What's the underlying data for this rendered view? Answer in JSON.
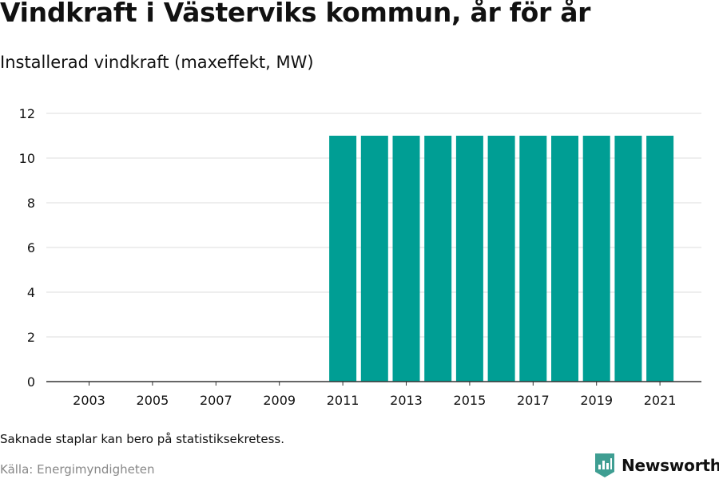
{
  "title": "Vindkraft i Västerviks kommun, år för år",
  "subtitle": "Installerad vindkraft (maxeffekt, MW)",
  "note": "Saknade staplar kan bero på statistiksekretess.",
  "source": "Källa: Energimyndigheten",
  "logo": {
    "text": "Newsworthy",
    "icon": "bar-chart-badge-icon",
    "color": "#3f9e92"
  },
  "colors": {
    "bar": "#009e94",
    "grid": "#dddddd",
    "axis": "#333333",
    "text": "#111111",
    "muted": "#888888"
  },
  "chart_data": {
    "type": "bar",
    "title": "Vindkraft i Västerviks kommun, år för år",
    "subtitle": "Installerad vindkraft (maxeffekt, MW)",
    "xlabel": "",
    "ylabel": "",
    "categories": [
      "2003",
      "2004",
      "2005",
      "2006",
      "2007",
      "2008",
      "2009",
      "2010",
      "2011",
      "2012",
      "2013",
      "2014",
      "2015",
      "2016",
      "2017",
      "2018",
      "2019",
      "2020",
      "2021"
    ],
    "values": [
      null,
      null,
      null,
      null,
      null,
      null,
      null,
      null,
      11,
      11,
      11,
      11,
      11,
      11,
      11,
      11,
      11,
      11,
      11
    ],
    "x_tick_labels": [
      "2003",
      "2005",
      "2007",
      "2009",
      "2011",
      "2013",
      "2015",
      "2017",
      "2019",
      "2021"
    ],
    "y_ticks": [
      0,
      2,
      4,
      6,
      8,
      10,
      12
    ],
    "ylim": [
      0,
      12
    ],
    "grid": true,
    "legend": "none"
  }
}
